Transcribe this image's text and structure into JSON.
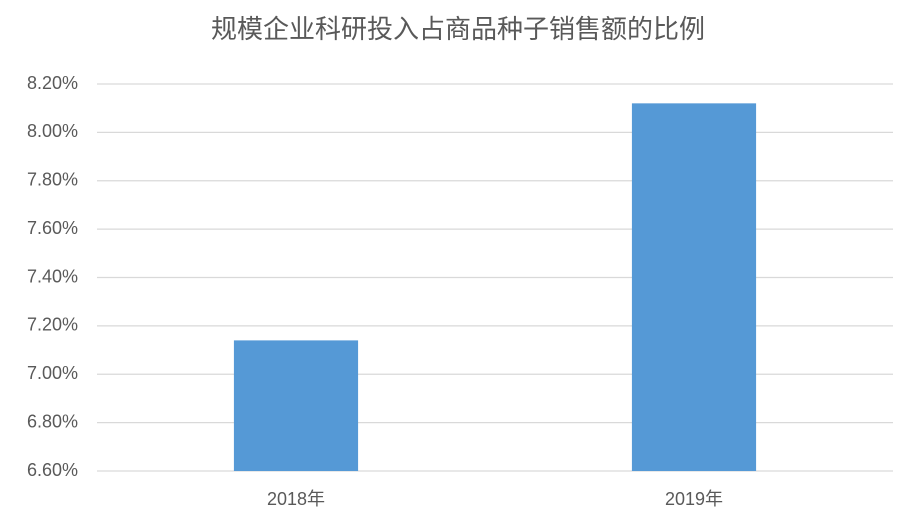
{
  "chart_data": {
    "type": "bar",
    "title": "规模企业科研投入占商品种子销售额的比例",
    "categories": [
      "2018年",
      "2019年"
    ],
    "values": [
      7.14,
      8.12
    ],
    "color": "#5599d6",
    "ylim": [
      6.6,
      8.2
    ],
    "yticks": [
      {
        "value": 6.6,
        "label": "6.60%"
      },
      {
        "value": 6.8,
        "label": "6.80%"
      },
      {
        "value": 7.0,
        "label": "7.00%"
      },
      {
        "value": 7.2,
        "label": "7.20%"
      },
      {
        "value": 7.4,
        "label": "7.40%"
      },
      {
        "value": 7.6,
        "label": "7.60%"
      },
      {
        "value": 7.8,
        "label": "7.80%"
      },
      {
        "value": 8.0,
        "label": "8.00%"
      },
      {
        "value": 8.2,
        "label": "8.20%"
      }
    ],
    "grid": true
  }
}
